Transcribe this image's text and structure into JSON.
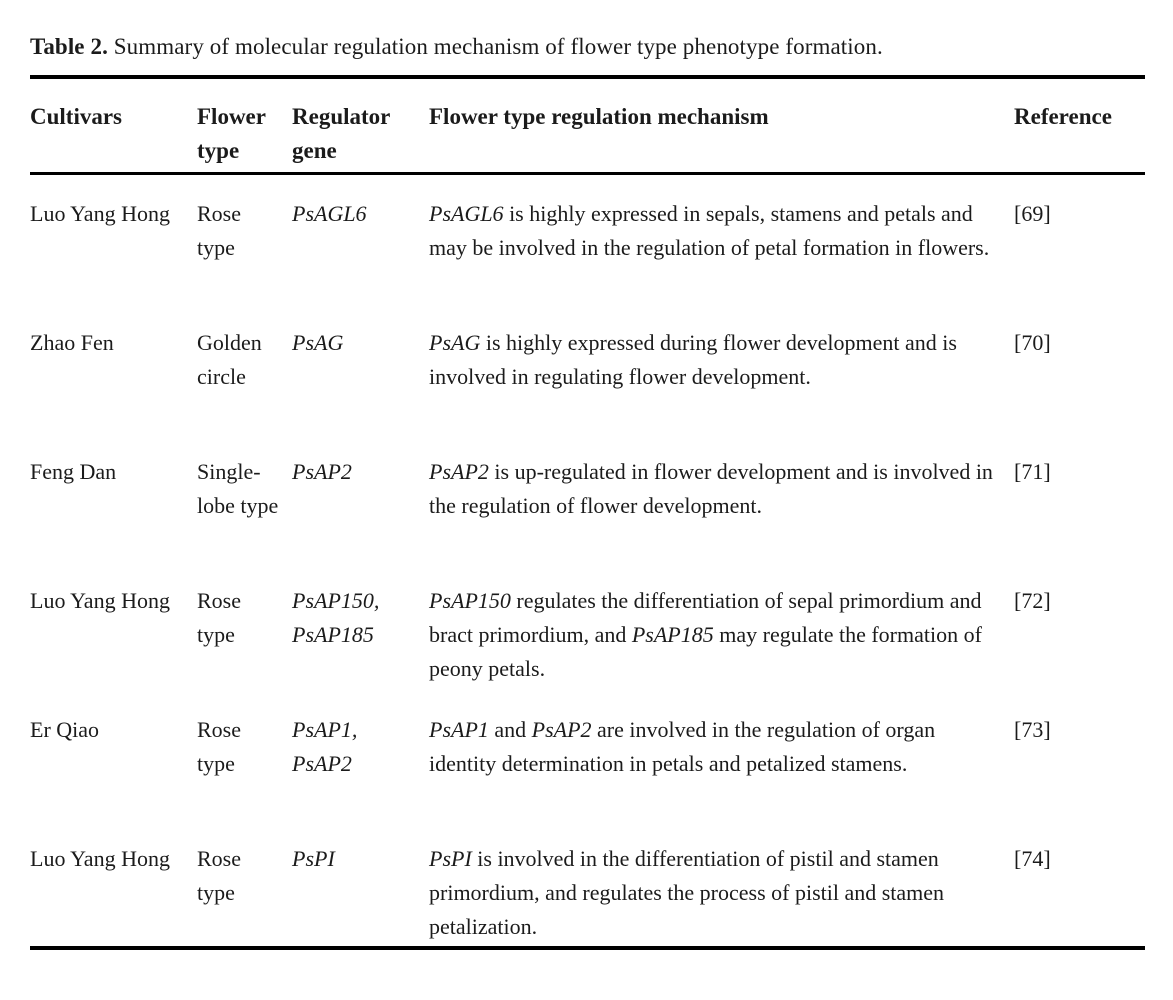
{
  "colors": {
    "background": "#ffffff",
    "text": "#1b1b1b",
    "rule": "#000000"
  },
  "caption": {
    "label": "Table 2.",
    "text": "Summary of molecular regulation mechanism of flower type phenotype formation."
  },
  "table": {
    "headers": [
      "Cultivars",
      "Flower type",
      "Regulator gene",
      "Flower type regulation mechanism",
      "Reference"
    ],
    "rows": [
      {
        "cultivar": "Luo Yang Hong",
        "flower_type": "Rose type",
        "regulator_gene": "PsAGL6",
        "mechanism": "PsAGL6 is highly expressed in sepals, stamens and petals and may be involved in the regulation of petal formation in flowers.",
        "reference": "[69]"
      },
      {
        "cultivar": "Zhao Fen",
        "flower_type": "Golden circle",
        "regulator_gene": "PsAG",
        "mechanism": "PsAG is highly expressed during flower development and is involved in regulating flower development.",
        "reference": "[70]"
      },
      {
        "cultivar": "Feng Dan",
        "flower_type": "Single-lobe type",
        "regulator_gene": "PsAP2",
        "mechanism": "PsAP2 is up-regulated in flower development and is involved in the regulation of flower development.",
        "reference": "[71]"
      },
      {
        "cultivar": "Luo Yang Hong",
        "flower_type": "Rose type",
        "regulator_gene": "PsAP150, PsAP185",
        "mechanism": "PsAP150 regulates the differentiation of sepal primordium and bract primordium, and PsAP185 may regulate the formation of peony petals.",
        "reference": "[72]"
      },
      {
        "cultivar": "Er Qiao",
        "flower_type": "Rose type",
        "regulator_gene": "PsAP1, PsAP2",
        "mechanism": "PsAP1 and PsAP2 are involved in the regulation of organ identity determination in petals and petalized stamens.",
        "reference": "[73]"
      },
      {
        "cultivar": "Luo Yang Hong",
        "flower_type": "Rose type",
        "regulator_gene": "PsPI",
        "mechanism": "PsPI is involved in the differentiation of pistil and stamen primordium, and regulates the process of pistil and stamen petalization.",
        "reference": "[74]"
      }
    ]
  }
}
